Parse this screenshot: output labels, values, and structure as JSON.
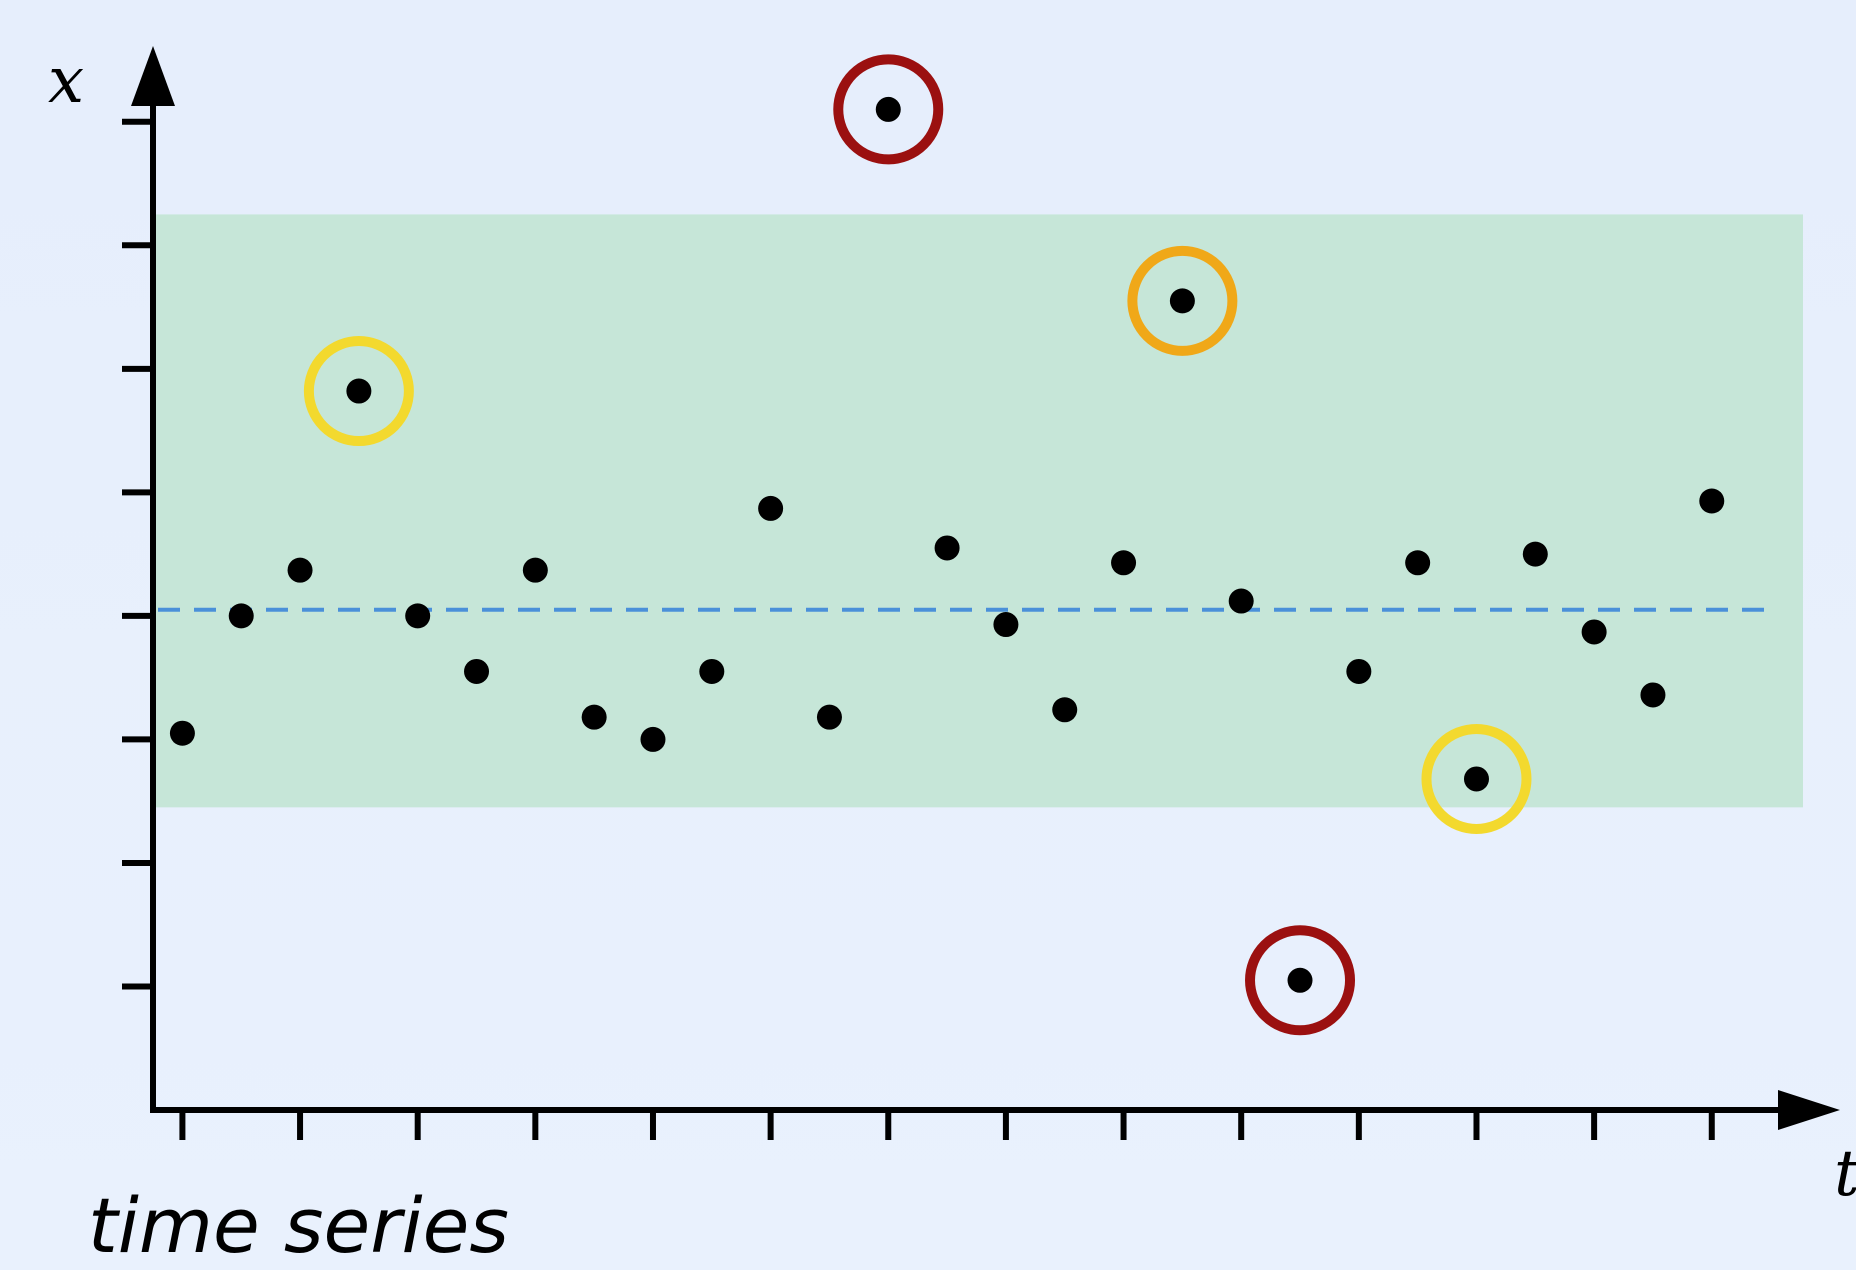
{
  "chart_data": {
    "type": "scatter",
    "xlabel": "t",
    "ylabel": "x",
    "caption": "time series",
    "xlim": [
      0.5,
      28.5
    ],
    "ylim": [
      -4.0,
      4.5
    ],
    "x_ticks": [
      1,
      3,
      5,
      7,
      9,
      11,
      13,
      15,
      17,
      19,
      21,
      23,
      25,
      27
    ],
    "y_ticks": [
      -3,
      -2,
      -1,
      0,
      1,
      2,
      3,
      4
    ],
    "grid": false,
    "mean": 0.05,
    "band": {
      "lower": -1.55,
      "upper": 3.25,
      "color": "#c6e6d8"
    },
    "mean_line_color": "#4a90d9",
    "series": [
      {
        "points": [
          {
            "x": 1,
            "y": -0.95
          },
          {
            "x": 2,
            "y": 0.0
          },
          {
            "x": 3,
            "y": 0.37
          },
          {
            "x": 4,
            "y": 1.82,
            "marker": "yellow"
          },
          {
            "x": 5,
            "y": 0.0
          },
          {
            "x": 6,
            "y": -0.45
          },
          {
            "x": 7,
            "y": 0.37
          },
          {
            "x": 8,
            "y": -0.82
          },
          {
            "x": 9,
            "y": -1.0
          },
          {
            "x": 10,
            "y": -0.45
          },
          {
            "x": 11,
            "y": 0.87
          },
          {
            "x": 12,
            "y": -0.82
          },
          {
            "x": 13,
            "y": 4.1,
            "marker": "red"
          },
          {
            "x": 14,
            "y": 0.55
          },
          {
            "x": 15,
            "y": -0.07
          },
          {
            "x": 16,
            "y": -0.76
          },
          {
            "x": 17,
            "y": 0.43
          },
          {
            "x": 18,
            "y": 2.55,
            "marker": "orange"
          },
          {
            "x": 19,
            "y": 0.12
          },
          {
            "x": 20,
            "y": -2.95,
            "marker": "red"
          },
          {
            "x": 21,
            "y": -0.45
          },
          {
            "x": 22,
            "y": 0.43
          },
          {
            "x": 23,
            "y": -1.32,
            "marker": "yellow"
          },
          {
            "x": 24,
            "y": 0.5
          },
          {
            "x": 25,
            "y": -0.13
          },
          {
            "x": 26,
            "y": -0.64
          },
          {
            "x": 27,
            "y": 0.93
          }
        ]
      }
    ],
    "marker_colors": {
      "red": "#9b1010",
      "orange": "#f0a818",
      "yellow": "#f3d92e"
    }
  }
}
